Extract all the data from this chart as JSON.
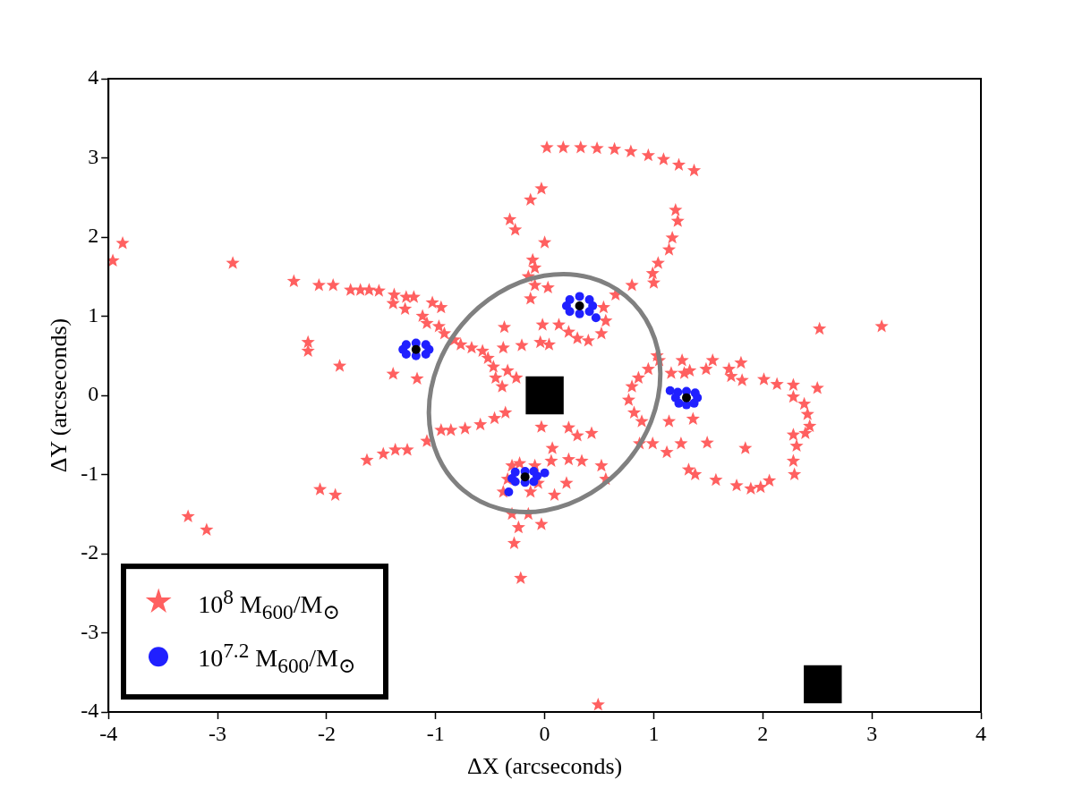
{
  "chart_data": {
    "type": "scatter",
    "xlabel": "ΔX (arcseconds)",
    "ylabel": "ΔY (arcseconds)",
    "xlim": [
      -4,
      4
    ],
    "ylim": [
      -4,
      4
    ],
    "xticks": [
      -4,
      -3,
      -2,
      -1,
      0,
      1,
      2,
      3,
      4
    ],
    "yticks": [
      -4,
      -3,
      -2,
      -1,
      0,
      1,
      2,
      3,
      4
    ],
    "grid": false,
    "legend": "bottom left",
    "series": [
      {
        "type": "scatter",
        "marker": "star",
        "name": "10$^{8}$ M$_{600}$/M$_{⊙}$",
        "color": "#ff6060",
        "x": [
          0.02,
          0.17,
          0.33,
          0.48,
          0.64,
          0.79,
          0.95,
          1.09,
          1.23,
          1.37,
          1.2,
          1.22,
          1.17,
          1.14,
          1.04,
          0.99,
          1,
          0.8,
          0.65,
          -0.03,
          -0.13,
          -0.32,
          -0.27,
          0,
          -0.11,
          -0.09,
          -0.15,
          -0.09,
          0.03,
          -3.87,
          -3.96,
          -2.86,
          -2.3,
          -2.07,
          -1.94,
          -1.78,
          -1.69,
          -1.61,
          -1.52,
          -1.38,
          -1.27,
          -1.2,
          -1.39,
          -1.28,
          -1.03,
          -0.95,
          -1.12,
          -1.08,
          -0.97,
          -0.92,
          -0.83,
          -0.77,
          -0.67,
          -0.57,
          -0.52,
          -0.47,
          -0.34,
          -0.45,
          -0.39,
          -0.26,
          -2.17,
          -2.17,
          -1.88,
          -1.39,
          -1.17,
          -0.37,
          -0.38,
          -0.21,
          -0.13,
          -0.02,
          -0.04,
          0.04,
          0.13,
          0.22,
          0.3,
          0.4,
          0.52,
          0.56,
          0.54,
          -0.36,
          -0.46,
          -0.59,
          -0.73,
          -0.86,
          -0.95,
          -1.08,
          -1.26,
          -1.37,
          -1.48,
          -1.63,
          -2.06,
          -1.92,
          -3.27,
          -3.1,
          -0.03,
          0.22,
          0.3,
          0.43,
          0.22,
          0.34,
          0.52,
          0.56,
          0.07,
          0.06,
          0.2,
          0.09,
          -0.3,
          -0.15,
          -0.24,
          -0.03,
          -0.28,
          -0.22,
          -0.3,
          -0.34,
          -0.23,
          -0.09,
          -0.06,
          -0.13,
          -0.38,
          0.49,
          0.87,
          0.89,
          0.82,
          0.77,
          0.8,
          0.86,
          0.95,
          1.05,
          1.03,
          1.26,
          1.28,
          1.16,
          1.33,
          1.48,
          1.54,
          1.69,
          1.8,
          1.71,
          1.81,
          2.01,
          2.5,
          2.52,
          3.09,
          1.25,
          1.12,
          0.99,
          1.14,
          1.36,
          1.49,
          1.57,
          1.76,
          1.89,
          1.98,
          2.06,
          1.84,
          2.28,
          2.29,
          2.31,
          2.28,
          2.39,
          2.43,
          2.41,
          2.38,
          2.28,
          2.28,
          2.13,
          1.38,
          1.32
        ],
        "values": [
          3.13,
          3.13,
          3.13,
          3.12,
          3.11,
          3.08,
          3.03,
          2.98,
          2.91,
          2.84,
          2.34,
          2.2,
          1.99,
          1.84,
          1.67,
          1.54,
          1.42,
          1.39,
          1.27,
          2.61,
          2.47,
          2.22,
          2.09,
          1.93,
          1.71,
          1.61,
          1.5,
          1.39,
          1.36,
          1.92,
          1.7,
          1.67,
          1.44,
          1.39,
          1.39,
          1.33,
          1.33,
          1.33,
          1.32,
          1.27,
          1.24,
          1.24,
          1.16,
          1.09,
          1.17,
          1.11,
          1,
          0.91,
          0.87,
          0.78,
          0.7,
          0.64,
          0.6,
          0.56,
          0.47,
          0.36,
          0.31,
          0.22,
          0.11,
          0.22,
          0.67,
          0.56,
          0.37,
          0.27,
          0.21,
          0.86,
          0.6,
          0.63,
          1.22,
          0.89,
          0.67,
          0.64,
          0.89,
          0.8,
          0.72,
          0.69,
          0.78,
          0.94,
          1.11,
          -0.22,
          -0.29,
          -0.37,
          -0.42,
          -0.44,
          -0.44,
          -0.58,
          -0.69,
          -0.69,
          -0.74,
          -0.82,
          -1.19,
          -1.26,
          -1.53,
          -1.7,
          -0.4,
          -0.41,
          -0.51,
          -0.48,
          -0.81,
          -0.83,
          -0.89,
          -1.06,
          -0.67,
          -0.83,
          -1.11,
          -1.26,
          -1.5,
          -1.5,
          -1.67,
          -1.63,
          -1.87,
          -2.31,
          -0.89,
          -1.06,
          -0.86,
          -0.89,
          -1.11,
          -1.22,
          -1.22,
          -3.91,
          -0.61,
          -0.33,
          -0.22,
          -0.06,
          0.11,
          0.22,
          0.33,
          0.44,
          0.5,
          0.44,
          0.28,
          0.28,
          0.31,
          0.33,
          0.44,
          0.33,
          0.41,
          0.24,
          0.19,
          0.2,
          0.09,
          0.84,
          0.87,
          -0.61,
          -0.72,
          -0.61,
          -0.33,
          -0.3,
          -0.6,
          -1.07,
          -1.14,
          -1.18,
          -1.16,
          -1.08,
          -0.67,
          -0.83,
          -1,
          -0.64,
          -0.5,
          -0.48,
          -0.39,
          -0.24,
          -0.11,
          -0.02,
          0.13,
          0.14,
          -1,
          -0.94
        ]
      },
      {
        "type": "scatter",
        "marker": "circle",
        "name": "10$^{7.2}$ M$_{600}$/M$_{⊙}$",
        "color": "#2020ff",
        "x": [
          -1.3,
          -1.06,
          -1.18,
          -1.18,
          -1.27,
          -1.09,
          -1.27,
          -1.09,
          0.2,
          0.44,
          0.32,
          0.32,
          0.23,
          0.41,
          0.23,
          0.41,
          0.47,
          1.2,
          1.4,
          1.3,
          1.3,
          1.22,
          1.38,
          1.23,
          1.37,
          1.15,
          -0.3,
          -0.07,
          -0.18,
          -0.18,
          -0.27,
          -0.1,
          -0.27,
          -0.1,
          -0.33,
          0
        ],
        "values": [
          0.58,
          0.58,
          0.66,
          0.5,
          0.64,
          0.64,
          0.52,
          0.52,
          1.13,
          1.13,
          1.25,
          1.03,
          1.21,
          1.21,
          1.06,
          1.06,
          0.98,
          -0.03,
          -0.03,
          0.05,
          -0.12,
          0.04,
          0.03,
          -0.1,
          -0.1,
          0.06,
          -1.05,
          -1.02,
          -0.96,
          -1.1,
          -0.97,
          -0.96,
          -1.09,
          -1.09,
          -1.22,
          -0.98
        ]
      },
      {
        "type": "scatter",
        "marker": "circle",
        "color": "#000000",
        "x": [
          -1.18,
          0.32,
          1.3,
          -0.18
        ],
        "values": [
          0.58,
          1.13,
          -0.03,
          -1.03
        ]
      },
      {
        "type": "scatter",
        "marker": "square",
        "color": "#000000",
        "x": [
          0,
          2.55
        ],
        "values": [
          0,
          -3.65
        ]
      }
    ]
  }
}
